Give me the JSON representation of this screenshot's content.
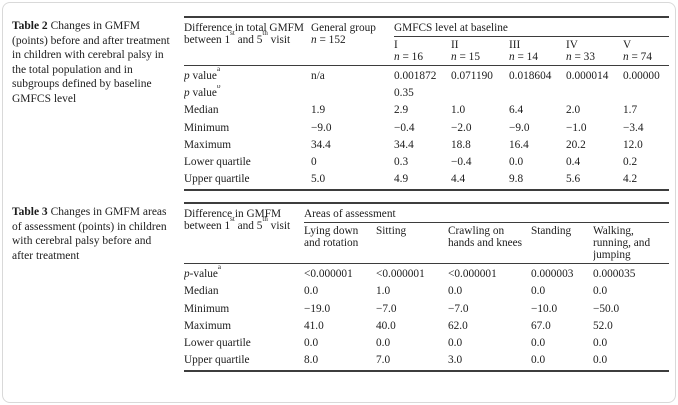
{
  "page": {
    "background": "#ffffff",
    "card_border": "#d9d9d9",
    "rule_color": "#3d3d3d",
    "text_color": "#1c1c1c"
  },
  "table2": {
    "caption_label": "Table 2",
    "caption_text": "Changes in GMFM (points) before and after treatment in children with cerebral palsy in the total population and in subgroups defined by baseline GMFCS level",
    "stub_header": "Difference in total GMFM between 1^{st} and 5^{th} visit",
    "general_label": "General group",
    "general_n": "*n* = 152",
    "group_header": "GMFCS level at baseline",
    "subcols": [
      {
        "roman": "I",
        "n": "*n* = 16"
      },
      {
        "roman": "II",
        "n": "*n* = 15"
      },
      {
        "roman": "III",
        "n": "*n* = 14"
      },
      {
        "roman": "IV",
        "n": "*n* = 33"
      },
      {
        "roman": "V",
        "n": "*n* = 74"
      }
    ],
    "rows": [
      {
        "label": "*p* value^{a}",
        "cells": [
          "n/a",
          "0.001872",
          "0.071190",
          "0.018604",
          "0.000014",
          "0.00000"
        ]
      },
      {
        "label": "*p* value^{b}",
        "cells": [
          "",
          "0.35",
          "",
          "",
          "",
          ""
        ]
      },
      {
        "label": "Median",
        "cells": [
          "1.9",
          "2.9",
          "1.0",
          "6.4",
          "2.0",
          "1.7"
        ]
      },
      {
        "label": "Minimum",
        "cells": [
          "−9.0",
          "−0.4",
          "−2.0",
          "−9.0",
          "−1.0",
          "−3.4"
        ]
      },
      {
        "label": "Maximum",
        "cells": [
          "34.4",
          "34.4",
          "18.8",
          "16.4",
          "20.2",
          "12.0"
        ]
      },
      {
        "label": "Lower quartile",
        "cells": [
          "0",
          "0.3",
          "−0.4",
          "0.0",
          "0.4",
          "0.2"
        ]
      },
      {
        "label": "Upper quartile",
        "cells": [
          "5.0",
          "4.9",
          "4.4",
          "9.8",
          "5.6",
          "4.2"
        ]
      }
    ]
  },
  "table3": {
    "caption_label": "Table 3",
    "caption_text": "Changes in GMFM areas of assessment (points) in children with cerebral palsy before and after treatment",
    "stub_header": "Difference in GMFM between 1^{st} and 5^{th} visit",
    "group_header": "Areas of assessment",
    "subcols": [
      "Lying down and rotation",
      "Sitting",
      "Crawling on hands and knees",
      "Standing",
      "Walking, running, and jumping"
    ],
    "rows": [
      {
        "label": "*p*-value^{a}",
        "cells": [
          "<0.000001",
          "<0.000001",
          "<0.000001",
          "0.000003",
          "0.000035"
        ]
      },
      {
        "label": "Median",
        "cells": [
          "0.0",
          "1.0",
          "0.0",
          "0.0",
          "0.0"
        ]
      },
      {
        "label": "Minimum",
        "cells": [
          "−19.0",
          "−7.0",
          "−7.0",
          "−10.0",
          "−50.0"
        ]
      },
      {
        "label": "Maximum",
        "cells": [
          "41.0",
          "40.0",
          "62.0",
          "67.0",
          "52.0"
        ]
      },
      {
        "label": "Lower quartile",
        "cells": [
          "0.0",
          "0.0",
          "0.0",
          "0.0",
          "0.0"
        ]
      },
      {
        "label": "Upper quartile",
        "cells": [
          "8.0",
          "7.0",
          "3.0",
          "0.0",
          "0.0"
        ]
      }
    ]
  }
}
